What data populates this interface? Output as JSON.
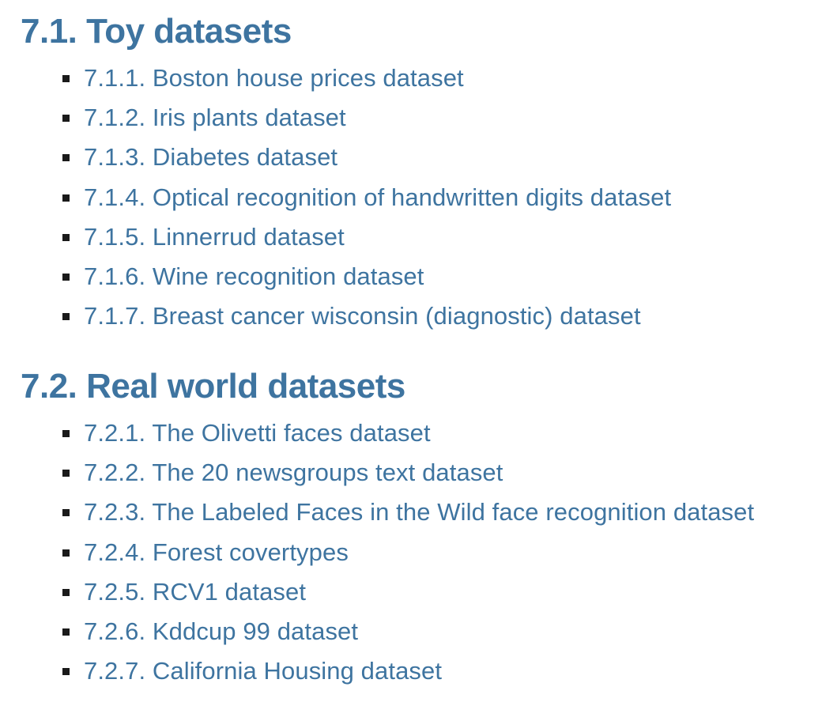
{
  "sections": [
    {
      "heading": "7.1. Toy datasets",
      "items": [
        "7.1.1. Boston house prices dataset",
        "7.1.2. Iris plants dataset",
        "7.1.3. Diabetes dataset",
        "7.1.4. Optical recognition of handwritten digits dataset",
        "7.1.5. Linnerrud dataset",
        "7.1.6. Wine recognition dataset",
        "7.1.7. Breast cancer wisconsin (diagnostic) dataset"
      ]
    },
    {
      "heading": "7.2. Real world datasets",
      "items": [
        "7.2.1. The Olivetti faces dataset",
        "7.2.2. The 20 newsgroups text dataset",
        "7.2.3. The Labeled Faces in the Wild face recognition dataset",
        "7.2.4. Forest covertypes",
        "7.2.5. RCV1 dataset",
        "7.2.6. Kddcup 99 dataset",
        "7.2.7. California Housing dataset"
      ]
    }
  ],
  "colors": {
    "link": "#3e74a0",
    "bullet": "#1a1a1a",
    "background": "#ffffff"
  }
}
